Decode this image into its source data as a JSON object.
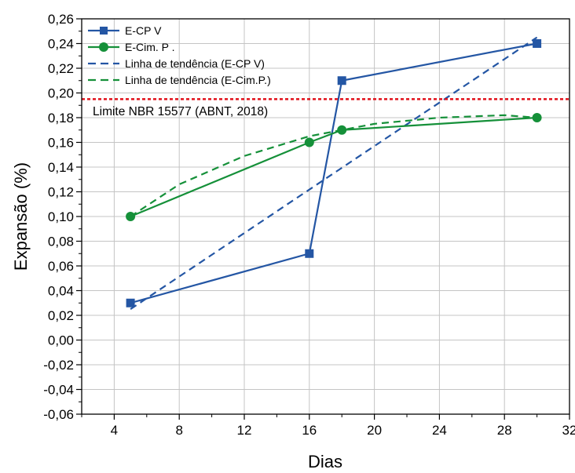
{
  "chart_data": {
    "type": "line",
    "xlabel": "Dias",
    "ylabel": "Expansão (%)",
    "xlim": [
      2,
      32
    ],
    "ylim": [
      -0.06,
      0.26
    ],
    "x_ticks": [
      4,
      8,
      12,
      16,
      20,
      24,
      28,
      32
    ],
    "x_tick_labels": [
      "4",
      "8",
      "12",
      "16",
      "20",
      "24",
      "28",
      "32"
    ],
    "y_ticks": [
      -0.06,
      -0.04,
      -0.02,
      0.0,
      0.02,
      0.04,
      0.06,
      0.08,
      0.1,
      0.12,
      0.14,
      0.16,
      0.18,
      0.2,
      0.22,
      0.24,
      0.26
    ],
    "y_tick_labels": [
      "-0,06",
      "-0,04",
      "-0,02",
      "0,00",
      "0,02",
      "0,04",
      "0,06",
      "0,08",
      "0,10",
      "0,12",
      "0,14",
      "0,16",
      "0,18",
      "0,20",
      "0,22",
      "0,24",
      "0,26"
    ],
    "grid": true,
    "legend_position": "top-left",
    "series": [
      {
        "name": "E-CP V",
        "x": [
          5,
          16,
          18,
          30
        ],
        "values": [
          0.03,
          0.07,
          0.21,
          0.24
        ],
        "color": "#2456a4",
        "marker": "square",
        "style": "solid"
      },
      {
        "name": "E-Cim. P .",
        "x": [
          5,
          16,
          18,
          30
        ],
        "values": [
          0.1,
          0.16,
          0.17,
          0.18
        ],
        "color": "#159039",
        "marker": "circle",
        "style": "solid"
      },
      {
        "name": "Linha de tendência (E-CP V)",
        "x": [
          5,
          30
        ],
        "values": [
          0.025,
          0.245
        ],
        "color": "#2456a4",
        "marker": "none",
        "style": "dashed"
      },
      {
        "name": "Linha de tendência (E-Cim.P.)",
        "x": [
          5,
          8,
          12,
          16,
          18,
          20,
          24,
          28,
          30
        ],
        "values": [
          0.1,
          0.126,
          0.149,
          0.165,
          0.17,
          0.175,
          0.18,
          0.182,
          0.18
        ],
        "color": "#159039",
        "marker": "none",
        "style": "dashed"
      }
    ],
    "reference_line": {
      "y": 0.195,
      "label": "Limite NBR 15577 (ABNT, 2018)",
      "color": "#e0101a",
      "style": "dotted"
    }
  }
}
